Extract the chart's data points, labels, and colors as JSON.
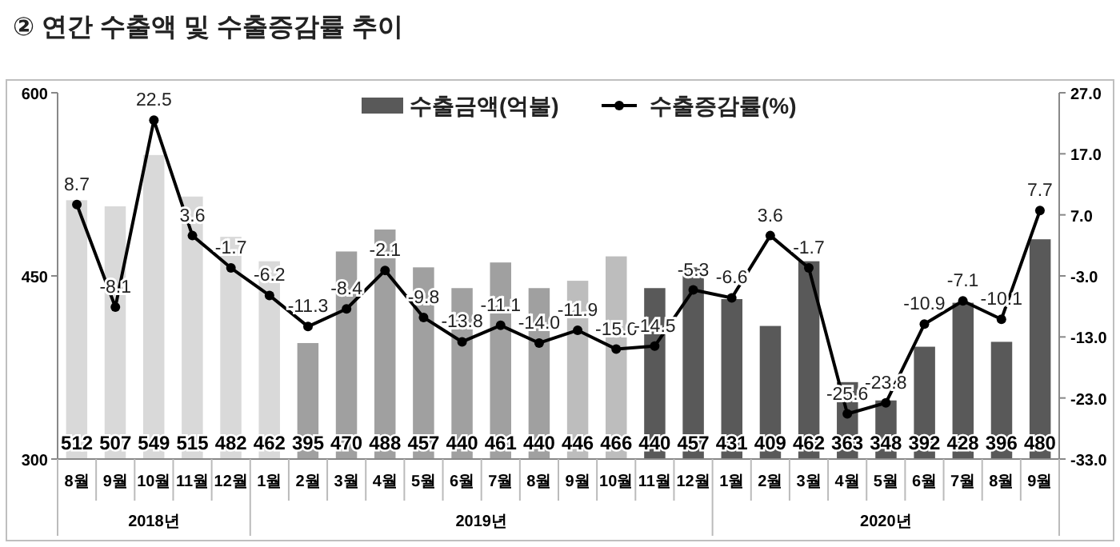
{
  "chart_data": {
    "type": "bar",
    "title": "② 연간 수출액 및 수출증감률 추이",
    "categories": [
      "8월",
      "9월",
      "10월",
      "11월",
      "12월",
      "1월",
      "2월",
      "3월",
      "4월",
      "5월",
      "6월",
      "7월",
      "8월",
      "9월",
      "10월",
      "11월",
      "12월",
      "1월",
      "2월",
      "3월",
      "4월",
      "5월",
      "6월",
      "7월",
      "8월",
      "9월"
    ],
    "series": [
      {
        "name": "수출금액(억불)",
        "color": "#595959",
        "colors": [
          "#d9d9d9",
          "#d9d9d9",
          "#d9d9d9",
          "#d9d9d9",
          "#d9d9d9",
          "#d9d9d9",
          "#a0a0a0",
          "#a0a0a0",
          "#a0a0a0",
          "#a0a0a0",
          "#a0a0a0",
          "#a0a0a0",
          "#a0a0a0",
          "#bdbdbd",
          "#bdbdbd",
          "#595959",
          "#595959",
          "#595959",
          "#595959",
          "#595959",
          "#595959",
          "#595959",
          "#595959",
          "#595959",
          "#595959",
          "#595959"
        ],
        "values": [
          512,
          507,
          549,
          515,
          482,
          462,
          395,
          470,
          488,
          457,
          440,
          461,
          440,
          446,
          466,
          440,
          457,
          431,
          409,
          462,
          363,
          348,
          392,
          428,
          396,
          480
        ],
        "value_labels": [
          "512",
          "507",
          "549",
          "515",
          "482",
          "462",
          "395",
          "470",
          "488",
          "457",
          "440",
          "461",
          "440",
          "446",
          "466",
          "440",
          "457",
          "431",
          "409",
          "462",
          "363",
          "348",
          "392",
          "428",
          "396",
          "480"
        ]
      },
      {
        "name": "수출증감률(%)",
        "type": "line",
        "axis": "y2",
        "color": "#000000",
        "marker": "circle",
        "values": [
          8.7,
          -8.1,
          22.5,
          3.6,
          -1.7,
          -6.2,
          -11.3,
          -8.4,
          -2.1,
          -9.8,
          -13.8,
          -11.1,
          -14.0,
          -11.9,
          -15.0,
          -14.5,
          -5.3,
          -6.6,
          3.6,
          -1.7,
          -25.6,
          -23.8,
          -10.9,
          -7.1,
          -10.1,
          7.7
        ],
        "value_labels": [
          "8.7",
          "-8.1",
          "22.5",
          "3.6",
          "-1.7",
          "-6.2",
          "-11.3",
          "-8.4",
          "-2.1",
          "-9.8",
          "-13.8",
          "-11.1",
          "-14.0",
          "-11.9",
          "-15.0",
          "-14.5",
          "-5.3",
          "-6.6",
          "3.6",
          "-1.7",
          "-25.6",
          "-23.8",
          "-10.9",
          "-7.1",
          "-10.1",
          "7.7"
        ]
      }
    ],
    "ylim": [
      300,
      600
    ],
    "yticks": [
      300,
      450,
      600
    ],
    "y2lim": [
      -33,
      27
    ],
    "y2ticks": [
      {
        "value": 27,
        "label": "27.0"
      },
      {
        "value": 17,
        "label": "17.0"
      },
      {
        "value": 7,
        "label": "7.0"
      },
      {
        "value": -3,
        "label": "-3.0"
      },
      {
        "value": -13,
        "label": "-13.0"
      },
      {
        "value": -23,
        "label": "-23.0"
      },
      {
        "value": -33,
        "label": "-33.0"
      }
    ],
    "annotations": [
      "2018년",
      "2019년",
      "2020년"
    ],
    "legend": "top",
    "grid": false
  }
}
